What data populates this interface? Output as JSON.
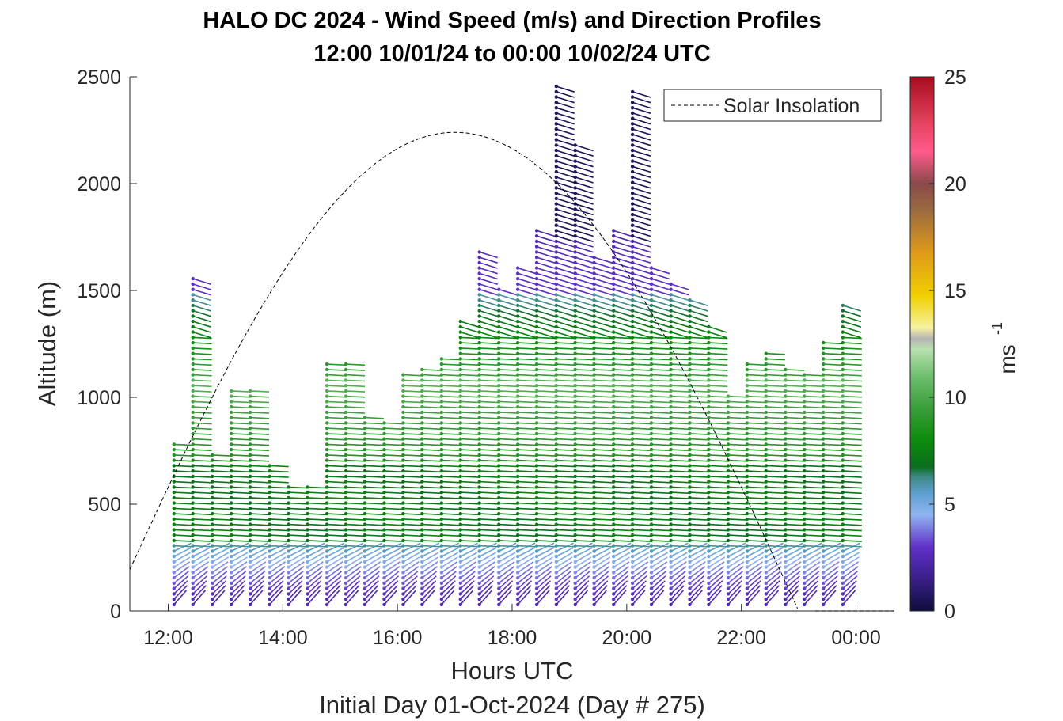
{
  "chart_data": {
    "type": "scatter",
    "title": [
      "HALO DC 2024 - Wind Speed (m/s) and Direction Profiles",
      "12:00 10/01/24 to 00:00 10/02/24  UTC"
    ],
    "xlabel": "Hours UTC",
    "xlabel2": "Initial Day 01-Oct-2024 (Day # 275)",
    "ylabel": "Altitude (m)",
    "xlim": [
      11.33,
      24.67
    ],
    "ylim": [
      0,
      2500
    ],
    "xticks": [
      12,
      14,
      16,
      18,
      20,
      22,
      24
    ],
    "xticklabels": [
      "12:00",
      "14:00",
      "16:00",
      "18:00",
      "20:00",
      "22:00",
      "00:00"
    ],
    "yticks": [
      0,
      500,
      1000,
      1500,
      2000,
      2500
    ],
    "yticklabels": [
      "0",
      "500",
      "1000",
      "1500",
      "2000",
      "2500"
    ],
    "colorbar": {
      "label": "ms",
      "exponent": "-1",
      "range": [
        0,
        25
      ],
      "ticks": [
        0,
        5,
        10,
        15,
        20,
        25
      ],
      "ticklabels": [
        "0",
        "5",
        "10",
        "15",
        "20",
        "25"
      ]
    },
    "legend": {
      "entries": [
        "Solar Insolation"
      ],
      "placement": "top-right"
    },
    "solar_insolation": {
      "style": "dashed",
      "color": "#000000",
      "peak_hour": 17.0,
      "peak_altitude": 2240
    },
    "profiles": [
      {
        "hour": 12.1,
        "top": 790
      },
      {
        "hour": 12.43,
        "top": 1560
      },
      {
        "hour": 12.77,
        "top": 740
      },
      {
        "hour": 13.1,
        "top": 1050
      },
      {
        "hour": 13.43,
        "top": 1050
      },
      {
        "hour": 13.77,
        "top": 690
      },
      {
        "hour": 14.1,
        "top": 590
      },
      {
        "hour": 14.43,
        "top": 600
      },
      {
        "hour": 14.77,
        "top": 1160
      },
      {
        "hour": 15.1,
        "top": 1160
      },
      {
        "hour": 15.43,
        "top": 920
      },
      {
        "hour": 15.77,
        "top": 900
      },
      {
        "hour": 16.1,
        "top": 1120
      },
      {
        "hour": 16.43,
        "top": 1140
      },
      {
        "hour": 16.77,
        "top": 1180
      },
      {
        "hour": 17.1,
        "top": 1360
      },
      {
        "hour": 17.43,
        "top": 1700
      },
      {
        "hour": 17.77,
        "top": 1520
      },
      {
        "hour": 18.1,
        "top": 1620
      },
      {
        "hour": 18.43,
        "top": 1780
      },
      {
        "hour": 18.77,
        "top": 2460
      },
      {
        "hour": 19.1,
        "top": 2180
      },
      {
        "hour": 19.43,
        "top": 1660
      },
      {
        "hour": 19.77,
        "top": 1780
      },
      {
        "hour": 20.1,
        "top": 2440
      },
      {
        "hour": 20.43,
        "top": 1620
      },
      {
        "hour": 20.77,
        "top": 1540
      },
      {
        "hour": 21.1,
        "top": 1460
      },
      {
        "hour": 21.43,
        "top": 1350
      },
      {
        "hour": 21.77,
        "top": 1010
      },
      {
        "hour": 22.1,
        "top": 1160
      },
      {
        "hour": 22.43,
        "top": 1210
      },
      {
        "hour": 22.77,
        "top": 1140
      },
      {
        "hour": 23.1,
        "top": 1110
      },
      {
        "hour": 23.43,
        "top": 1260
      },
      {
        "hour": 23.77,
        "top": 1450
      }
    ]
  }
}
